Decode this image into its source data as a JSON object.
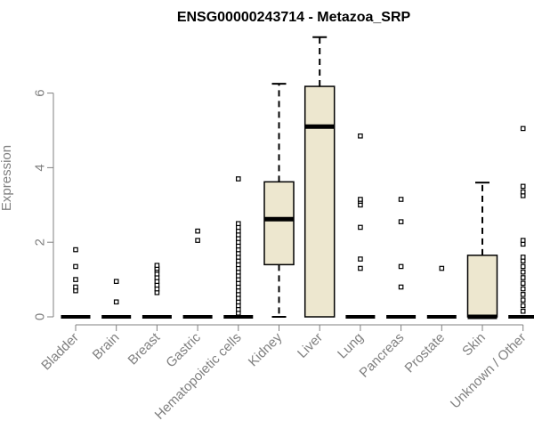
{
  "chart_data": {
    "type": "boxplot",
    "title": "ENSG00000243714 - Metazoa_SRP",
    "ylabel": "Expression",
    "xlabel": "",
    "ylim": [
      0,
      7.5
    ],
    "yticks": [
      0,
      2,
      4,
      6
    ],
    "box_color": "#ede7cf",
    "categories": [
      "Bladder",
      "Brain",
      "Breast",
      "Gastric",
      "Hematopoietic cells",
      "Kidney",
      "Liver",
      "Lung",
      "Pancreas",
      "Prostate",
      "Skin",
      "Unknown / Other"
    ],
    "boxes": [
      {
        "q1": 0,
        "median": 0,
        "q3": 0,
        "whisker_low": 0,
        "whisker_high": 0,
        "outliers": [
          0.7,
          0.8,
          1.0,
          1.35,
          1.8
        ]
      },
      {
        "q1": 0,
        "median": 0,
        "q3": 0,
        "whisker_low": 0,
        "whisker_high": 0,
        "outliers": [
          0.4,
          0.95
        ]
      },
      {
        "q1": 0,
        "median": 0,
        "q3": 0,
        "whisker_low": 0,
        "whisker_high": 0,
        "outliers": [
          0.65,
          0.75,
          0.85,
          0.95,
          1.05,
          1.15,
          1.25,
          1.3,
          1.38
        ]
      },
      {
        "q1": 0,
        "median": 0,
        "q3": 0,
        "whisker_low": 0,
        "whisker_high": 0,
        "outliers": [
          2.05,
          2.3
        ]
      },
      {
        "q1": 0,
        "median": 0,
        "q3": 0,
        "whisker_low": 0,
        "whisker_high": 0,
        "outliers": [
          0.1,
          0.2,
          0.3,
          0.4,
          0.5,
          0.6,
          0.7,
          0.8,
          0.9,
          1.0,
          1.1,
          1.2,
          1.3,
          1.4,
          1.5,
          1.6,
          1.7,
          1.8,
          1.9,
          2.0,
          2.1,
          2.2,
          2.3,
          2.4,
          2.5,
          3.7
        ]
      },
      {
        "q1": 1.4,
        "median": 2.62,
        "q3": 3.62,
        "whisker_low": 0,
        "whisker_high": 6.25,
        "outliers": []
      },
      {
        "q1": 0,
        "median": 5.1,
        "q3": 6.18,
        "whisker_low": 0,
        "whisker_high": 7.5,
        "outliers": []
      },
      {
        "q1": 0,
        "median": 0,
        "q3": 0,
        "whisker_low": 0,
        "whisker_high": 0,
        "outliers": [
          1.3,
          1.55,
          2.4,
          3.0,
          3.1,
          3.15,
          4.85
        ]
      },
      {
        "q1": 0,
        "median": 0,
        "q3": 0,
        "whisker_low": 0,
        "whisker_high": 0,
        "outliers": [
          0.8,
          1.35,
          2.55,
          3.15
        ]
      },
      {
        "q1": 0,
        "median": 0,
        "q3": 0,
        "whisker_low": 0,
        "whisker_high": 0,
        "outliers": [
          1.3
        ]
      },
      {
        "q1": 0,
        "median": 0,
        "q3": 1.65,
        "whisker_low": 0,
        "whisker_high": 3.6,
        "outliers": []
      },
      {
        "q1": 0,
        "median": 0,
        "q3": 0,
        "whisker_low": 0,
        "whisker_high": 0,
        "outliers": [
          0.15,
          0.3,
          0.45,
          0.6,
          0.75,
          0.9,
          1.05,
          1.2,
          1.35,
          1.5,
          1.6,
          1.95,
          2.05,
          3.25,
          3.35,
          3.5,
          5.05
        ]
      }
    ]
  }
}
